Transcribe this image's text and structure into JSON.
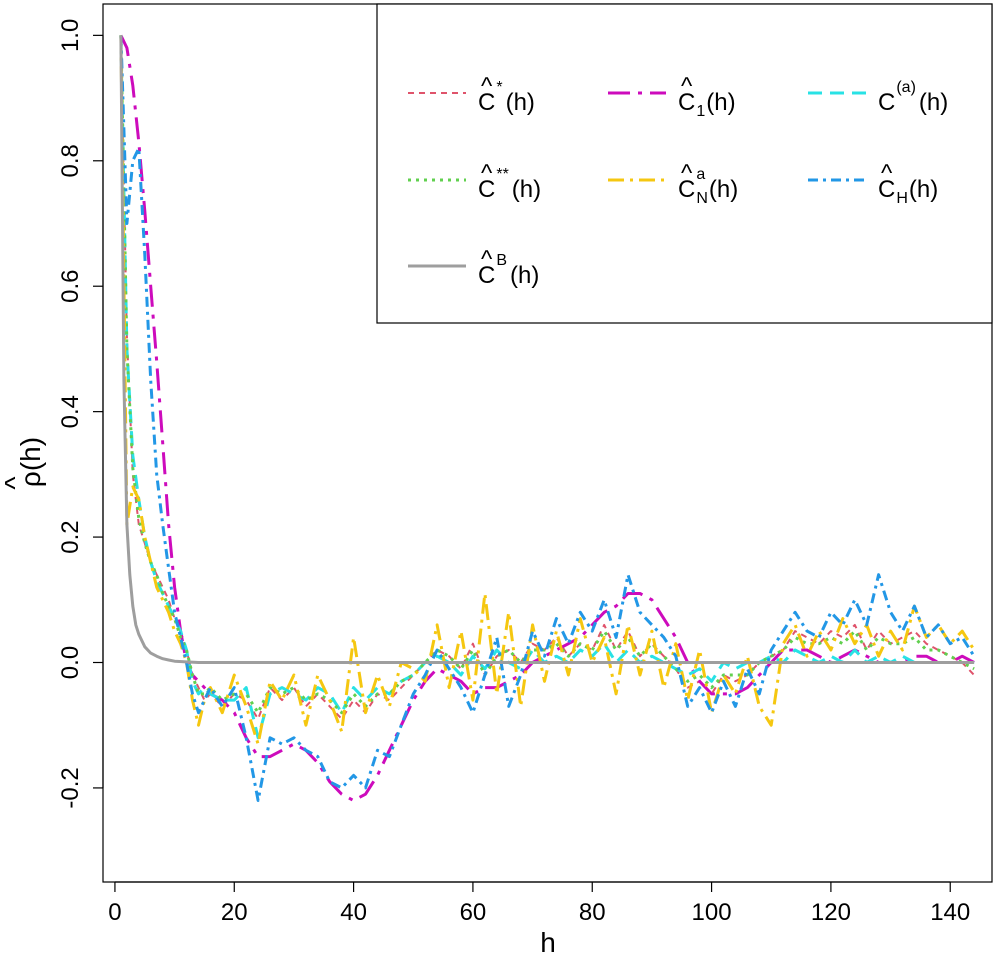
{
  "chart_data": {
    "type": "line",
    "xlabel": "h",
    "ylabel": "ρ(h)",
    "ylabel_accent": "^",
    "xlim": [
      -2,
      147
    ],
    "ylim": [
      -0.35,
      1.05
    ],
    "x_ticks": [
      0,
      20,
      40,
      60,
      80,
      100,
      120,
      140
    ],
    "x_tick_labels": [
      "0",
      "20",
      "40",
      "60",
      "80",
      "100",
      "120",
      "140"
    ],
    "y_ticks": [
      -0.2,
      0.0,
      0.2,
      0.4,
      0.6,
      0.8,
      1.0
    ],
    "y_tick_labels": [
      "-0.2",
      "0.0",
      "0.2",
      "0.4",
      "0.6",
      "0.8",
      "1.0"
    ],
    "grid": false,
    "legend_position": "top-right",
    "series": [
      {
        "key": "c_star",
        "color": "#DF536B",
        "dash": "6,5",
        "width": 2,
        "legend": {
          "hat": "^",
          "base": "C",
          "sup": "*",
          "sub": "",
          "tail": "(h)"
        },
        "x": [
          1,
          2,
          3,
          4,
          5,
          6,
          7,
          8,
          9,
          10,
          11,
          12,
          13,
          14,
          15,
          16,
          18,
          20,
          22,
          24,
          26,
          28,
          30,
          32,
          34,
          36,
          38,
          40,
          42,
          44,
          46,
          48,
          50,
          52,
          54,
          56,
          58,
          60,
          62,
          64,
          66,
          68,
          70,
          72,
          74,
          76,
          78,
          80,
          82,
          84,
          86,
          88,
          90,
          92,
          94,
          96,
          98,
          100,
          102,
          104,
          106,
          108,
          110,
          112,
          114,
          116,
          118,
          120,
          122,
          124,
          126,
          128,
          130,
          132,
          134,
          136,
          138,
          140,
          142,
          144
        ],
        "y": [
          1.0,
          0.52,
          0.3,
          0.22,
          0.19,
          0.16,
          0.14,
          0.12,
          0.1,
          0.07,
          0.05,
          0.02,
          -0.02,
          -0.04,
          -0.06,
          -0.05,
          -0.07,
          -0.05,
          -0.06,
          -0.09,
          -0.04,
          -0.06,
          -0.04,
          -0.07,
          -0.05,
          -0.07,
          -0.09,
          -0.06,
          -0.08,
          -0.05,
          -0.06,
          -0.04,
          -0.02,
          0.0,
          0.02,
          0.01,
          -0.01,
          0.03,
          -0.02,
          0.01,
          0.02,
          0.0,
          0.03,
          0.02,
          0.04,
          0.01,
          0.03,
          0.02,
          0.06,
          0.02,
          0.05,
          0.01,
          0.03,
          0.01,
          -0.01,
          -0.04,
          -0.03,
          -0.05,
          -0.02,
          -0.03,
          -0.02,
          0.0,
          0.01,
          0.02,
          0.05,
          0.04,
          0.03,
          0.05,
          0.04,
          0.06,
          0.02,
          0.05,
          0.03,
          0.04,
          0.05,
          0.03,
          0.02,
          0.01,
          0.0,
          -0.02
        ]
      },
      {
        "key": "c_one",
        "color": "#CD0BBC",
        "dash": "22,8,4,8",
        "width": 3,
        "legend": {
          "hat": "^",
          "base": "C",
          "sup": "",
          "sub": "1",
          "tail": "(h)"
        },
        "x": [
          1,
          2,
          3,
          4,
          5,
          6,
          7,
          8,
          9,
          10,
          11,
          12,
          13,
          14,
          15,
          16,
          18,
          20,
          22,
          24,
          26,
          28,
          30,
          32,
          34,
          36,
          38,
          40,
          42,
          44,
          46,
          48,
          50,
          52,
          54,
          56,
          58,
          60,
          62,
          64,
          66,
          68,
          70,
          72,
          74,
          76,
          78,
          80,
          82,
          84,
          86,
          88,
          90,
          92,
          94,
          96,
          98,
          100,
          102,
          104,
          106,
          108,
          110,
          112,
          114,
          116,
          118,
          120,
          122,
          124,
          126,
          128,
          130,
          132,
          134,
          136,
          138,
          140,
          142,
          144
        ],
        "y": [
          1.0,
          0.98,
          0.92,
          0.83,
          0.72,
          0.6,
          0.48,
          0.35,
          0.22,
          0.12,
          0.05,
          0.0,
          -0.02,
          -0.03,
          -0.04,
          -0.05,
          -0.06,
          -0.08,
          -0.12,
          -0.15,
          -0.15,
          -0.14,
          -0.13,
          -0.14,
          -0.16,
          -0.19,
          -0.21,
          -0.22,
          -0.21,
          -0.18,
          -0.14,
          -0.1,
          -0.06,
          -0.03,
          -0.01,
          -0.02,
          -0.03,
          -0.05,
          -0.04,
          -0.04,
          -0.03,
          -0.02,
          0.0,
          0.01,
          0.02,
          0.03,
          0.04,
          0.06,
          0.08,
          0.09,
          0.11,
          0.11,
          0.1,
          0.07,
          0.04,
          0.0,
          -0.03,
          -0.05,
          -0.05,
          -0.05,
          -0.04,
          -0.02,
          0.0,
          0.02,
          0.02,
          0.02,
          0.01,
          0.0,
          0.01,
          0.02,
          0.01,
          0.0,
          0.0,
          0.0,
          0.01,
          0.01,
          0.0,
          0.0,
          0.01,
          0.0
        ]
      },
      {
        "key": "c_a",
        "color": "#28E2E5",
        "dash": "14,8",
        "width": 3,
        "legend": {
          "hat": "",
          "base": "C",
          "sup": "(a)",
          "sub": "",
          "tail": "(h)"
        },
        "x": [
          1,
          2,
          3,
          4,
          5,
          6,
          7,
          8,
          9,
          10,
          11,
          12,
          13,
          14,
          15,
          16,
          18,
          20,
          22,
          24,
          26,
          28,
          30,
          32,
          34,
          36,
          38,
          40,
          42,
          44,
          46,
          48,
          50,
          52,
          54,
          56,
          58,
          60,
          62,
          64,
          66,
          68,
          70,
          72,
          74,
          76,
          78,
          80,
          82,
          84,
          86,
          88,
          90,
          92,
          94,
          96,
          98,
          100,
          102,
          104,
          106,
          108,
          110,
          112,
          114,
          116,
          118,
          120,
          122,
          124,
          126,
          128,
          130,
          132,
          134,
          136,
          138,
          140,
          142,
          144
        ],
        "y": [
          1.0,
          0.5,
          0.33,
          0.26,
          0.2,
          0.16,
          0.13,
          0.11,
          0.09,
          0.07,
          0.05,
          0.02,
          -0.03,
          -0.05,
          -0.04,
          -0.05,
          -0.06,
          -0.06,
          -0.04,
          -0.12,
          -0.05,
          -0.04,
          -0.05,
          -0.06,
          -0.04,
          -0.05,
          -0.08,
          -0.04,
          -0.06,
          -0.04,
          -0.05,
          -0.03,
          -0.02,
          0.0,
          0.01,
          0.0,
          -0.02,
          0.01,
          -0.01,
          0.02,
          0.0,
          -0.01,
          0.02,
          0.0,
          0.01,
          0.0,
          0.02,
          0.01,
          0.03,
          0.0,
          0.02,
          0.0,
          0.01,
          0.0,
          -0.01,
          -0.02,
          -0.01,
          -0.03,
          0.0,
          -0.01,
          0.0,
          0.0,
          0.01,
          0.0,
          0.02,
          0.01,
          0.0,
          0.01,
          0.0,
          0.02,
          0.0,
          0.01,
          0.0,
          0.01,
          0.0,
          0.0,
          0.0,
          0.0,
          0.0,
          0.0
        ]
      },
      {
        "key": "c_dstar",
        "color": "#61D04F",
        "dash": "3,5",
        "width": 3,
        "legend": {
          "hat": "^",
          "base": "C",
          "sup": "**",
          "sub": "",
          "tail": "(h)"
        },
        "x": [
          1,
          2,
          3,
          4,
          5,
          6,
          7,
          8,
          9,
          10,
          11,
          12,
          13,
          14,
          15,
          16,
          18,
          20,
          22,
          24,
          26,
          28,
          30,
          32,
          34,
          36,
          38,
          40,
          42,
          44,
          46,
          48,
          50,
          52,
          54,
          56,
          58,
          60,
          62,
          64,
          66,
          68,
          70,
          72,
          74,
          76,
          78,
          80,
          82,
          84,
          86,
          88,
          90,
          92,
          94,
          96,
          98,
          100,
          102,
          104,
          106,
          108,
          110,
          112,
          114,
          116,
          118,
          120,
          122,
          124,
          126,
          128,
          130,
          132,
          134,
          136,
          138,
          140,
          142,
          144
        ],
        "y": [
          1.0,
          0.5,
          0.31,
          0.23,
          0.19,
          0.16,
          0.14,
          0.11,
          0.09,
          0.07,
          0.04,
          0.02,
          -0.02,
          -0.05,
          -0.05,
          -0.04,
          -0.06,
          -0.05,
          -0.05,
          -0.08,
          -0.04,
          -0.05,
          -0.04,
          -0.06,
          -0.05,
          -0.06,
          -0.08,
          -0.05,
          -0.07,
          -0.05,
          -0.05,
          -0.03,
          -0.02,
          0.0,
          0.02,
          0.01,
          -0.01,
          0.02,
          -0.02,
          0.01,
          0.02,
          0.0,
          0.02,
          0.02,
          0.03,
          0.01,
          0.03,
          0.02,
          0.05,
          0.02,
          0.04,
          0.01,
          0.03,
          0.01,
          -0.01,
          -0.03,
          -0.02,
          -0.04,
          -0.02,
          -0.02,
          -0.02,
          0.0,
          0.01,
          0.02,
          0.04,
          0.03,
          0.03,
          0.04,
          0.03,
          0.05,
          0.02,
          0.04,
          0.03,
          0.03,
          0.04,
          0.02,
          0.02,
          0.01,
          0.0,
          -0.01
        ]
      },
      {
        "key": "c_na",
        "color": "#F5C710",
        "dash": "16,6,3,6",
        "width": 3,
        "legend": {
          "hat": "^",
          "base": "C",
          "sup": "a",
          "sub": "N",
          "tail": "(h)"
        },
        "x": [
          1,
          2,
          3,
          4,
          5,
          6,
          7,
          8,
          9,
          10,
          11,
          12,
          13,
          14,
          15,
          16,
          18,
          20,
          22,
          24,
          26,
          28,
          30,
          32,
          34,
          36,
          38,
          40,
          42,
          44,
          46,
          48,
          50,
          52,
          54,
          56,
          58,
          60,
          62,
          64,
          66,
          68,
          70,
          72,
          74,
          76,
          78,
          80,
          82,
          84,
          86,
          88,
          90,
          92,
          94,
          96,
          98,
          100,
          102,
          104,
          106,
          108,
          110,
          112,
          114,
          116,
          118,
          120,
          122,
          124,
          126,
          128,
          130,
          132,
          134,
          136,
          138,
          140,
          142,
          144
        ],
        "y": [
          1.0,
          0.22,
          0.28,
          0.26,
          0.2,
          0.16,
          0.12,
          0.1,
          0.08,
          0.05,
          0.03,
          0.0,
          -0.06,
          -0.1,
          -0.06,
          -0.04,
          -0.08,
          -0.02,
          -0.07,
          -0.13,
          -0.03,
          -0.06,
          -0.02,
          -0.1,
          -0.02,
          -0.06,
          -0.11,
          0.04,
          -0.08,
          -0.02,
          -0.07,
          0.0,
          -0.01,
          -0.03,
          0.06,
          -0.04,
          0.05,
          -0.06,
          0.11,
          -0.05,
          0.08,
          -0.07,
          0.06,
          -0.03,
          0.05,
          -0.02,
          0.07,
          0.0,
          0.04,
          -0.05,
          0.06,
          -0.02,
          0.05,
          -0.04,
          0.03,
          -0.06,
          0.02,
          -0.08,
          -0.02,
          -0.05,
          0.01,
          -0.07,
          -0.1,
          0.03,
          0.06,
          0.01,
          0.05,
          0.02,
          0.07,
          0.03,
          0.06,
          0.01,
          0.05,
          0.02,
          0.09,
          0.04,
          0.06,
          0.03,
          0.05,
          0.02
        ]
      },
      {
        "key": "c_h",
        "color": "#2297E6",
        "dash": "10,5,3,5",
        "width": 3,
        "legend": {
          "hat": "^",
          "base": "C",
          "sup": "",
          "sub": "H",
          "tail": "(h)"
        },
        "x": [
          1,
          2,
          3,
          4,
          5,
          6,
          7,
          8,
          9,
          10,
          11,
          12,
          13,
          14,
          15,
          16,
          18,
          20,
          22,
          24,
          26,
          28,
          30,
          32,
          34,
          36,
          38,
          40,
          42,
          44,
          46,
          48,
          50,
          52,
          54,
          56,
          58,
          60,
          62,
          64,
          66,
          68,
          70,
          72,
          74,
          76,
          78,
          80,
          82,
          84,
          86,
          88,
          90,
          92,
          94,
          96,
          98,
          100,
          102,
          104,
          106,
          108,
          110,
          112,
          114,
          116,
          118,
          120,
          122,
          124,
          126,
          128,
          130,
          132,
          134,
          136,
          138,
          140,
          142,
          144
        ],
        "y": [
          1.0,
          0.7,
          0.8,
          0.82,
          0.65,
          0.45,
          0.3,
          0.22,
          0.15,
          0.08,
          0.04,
          0.0,
          -0.05,
          -0.08,
          -0.06,
          -0.04,
          -0.07,
          -0.04,
          -0.12,
          -0.22,
          -0.12,
          -0.13,
          -0.12,
          -0.14,
          -0.15,
          -0.19,
          -0.2,
          -0.18,
          -0.2,
          -0.14,
          -0.15,
          -0.1,
          -0.05,
          -0.02,
          0.02,
          -0.01,
          -0.04,
          -0.08,
          -0.02,
          0.04,
          -0.07,
          -0.02,
          0.05,
          0.01,
          0.07,
          0.03,
          0.08,
          0.05,
          0.1,
          0.04,
          0.14,
          0.08,
          0.06,
          0.04,
          0.01,
          -0.07,
          -0.04,
          -0.08,
          -0.03,
          -0.07,
          -0.01,
          -0.05,
          0.02,
          0.05,
          0.08,
          0.05,
          0.04,
          0.08,
          0.06,
          0.1,
          0.06,
          0.14,
          0.08,
          0.05,
          0.09,
          0.04,
          0.06,
          0.03,
          0.04,
          0.01
        ]
      },
      {
        "key": "c_b",
        "color": "#9E9E9E",
        "dash": "",
        "width": 3,
        "legend": {
          "hat": "^",
          "base": "C",
          "sup": "B",
          "sub": "",
          "tail": "(h)"
        },
        "x": [
          1,
          1.5,
          2,
          2.5,
          3,
          3.5,
          4,
          5,
          6,
          7,
          8,
          9,
          10,
          12,
          14,
          16,
          20,
          30,
          40,
          60,
          80,
          100,
          120,
          144
        ],
        "y": [
          1.0,
          0.45,
          0.22,
          0.14,
          0.09,
          0.06,
          0.045,
          0.025,
          0.015,
          0.01,
          0.006,
          0.004,
          0.002,
          0.001,
          0.0,
          0.0,
          0.0,
          0.0,
          0.0,
          0.0,
          0.0,
          0.0,
          0.0,
          0.0
        ]
      }
    ]
  }
}
